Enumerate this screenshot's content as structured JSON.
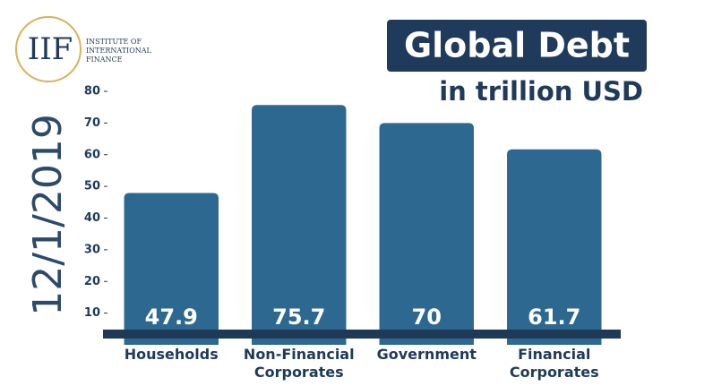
{
  "logo": {
    "abbr": "IIF",
    "name": "INSTITUTE OF INTERNATIONAL FINANCE"
  },
  "chart_data": {
    "type": "bar",
    "title": "Global Debt",
    "subtitle": "in trillion USD",
    "date": "12/1/2019",
    "categories": [
      "Households",
      "Non-Financial Corporates",
      "Government",
      "Financial Corporates"
    ],
    "values": [
      47.9,
      75.7,
      70,
      61.7
    ],
    "color": "#2d6890",
    "ylim": [
      0,
      80
    ],
    "yticks": [
      10,
      20,
      30,
      40,
      50,
      60,
      70,
      80
    ]
  }
}
